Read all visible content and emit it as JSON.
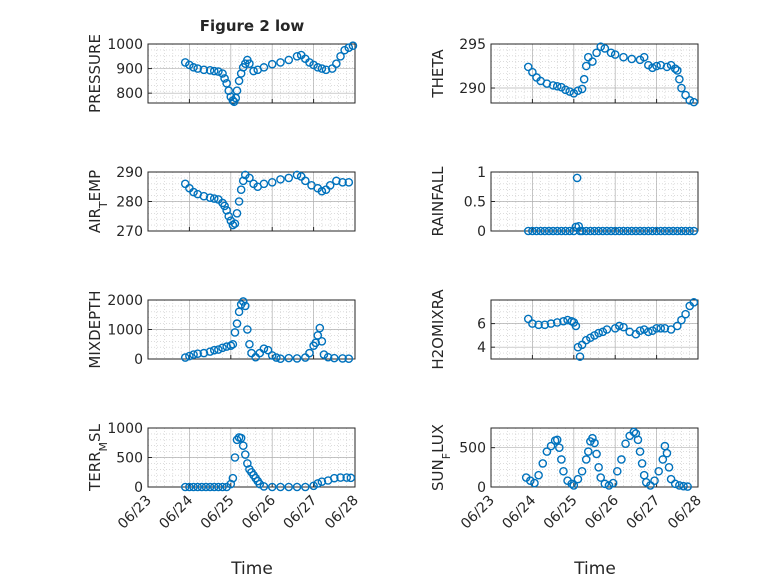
{
  "title": "Figure 2 low",
  "xlabel": "Time",
  "x_ticks": [
    "06/23",
    "06/24",
    "06/25",
    "06/26",
    "06/27",
    "06/28"
  ],
  "marker_color": "#0072BD",
  "chart_data": [
    {
      "type": "scatter",
      "ylabel": "PRESSURE",
      "xlim": [
        0,
        5
      ],
      "ylim": [
        760,
        1000
      ],
      "yticks": [
        800,
        900,
        1000
      ],
      "points": [
        [
          0.9,
          925
        ],
        [
          1.0,
          915
        ],
        [
          1.1,
          905
        ],
        [
          1.2,
          900
        ],
        [
          1.35,
          895
        ],
        [
          1.5,
          893
        ],
        [
          1.6,
          890
        ],
        [
          1.7,
          888
        ],
        [
          1.8,
          880
        ],
        [
          1.85,
          860
        ],
        [
          1.9,
          840
        ],
        [
          1.95,
          810
        ],
        [
          2.0,
          785
        ],
        [
          2.05,
          770
        ],
        [
          2.08,
          765
        ],
        [
          2.12,
          780
        ],
        [
          2.15,
          810
        ],
        [
          2.2,
          850
        ],
        [
          2.25,
          880
        ],
        [
          2.3,
          905
        ],
        [
          2.35,
          920
        ],
        [
          2.4,
          935
        ],
        [
          2.45,
          920
        ],
        [
          2.55,
          890
        ],
        [
          2.65,
          895
        ],
        [
          2.8,
          905
        ],
        [
          3.0,
          918
        ],
        [
          3.2,
          925
        ],
        [
          3.4,
          935
        ],
        [
          3.6,
          950
        ],
        [
          3.7,
          955
        ],
        [
          3.8,
          940
        ],
        [
          3.9,
          925
        ],
        [
          4.0,
          915
        ],
        [
          4.1,
          905
        ],
        [
          4.2,
          900
        ],
        [
          4.3,
          895
        ],
        [
          4.45,
          900
        ],
        [
          4.55,
          920
        ],
        [
          4.65,
          950
        ],
        [
          4.75,
          975
        ],
        [
          4.85,
          985
        ],
        [
          4.95,
          993
        ]
      ]
    },
    {
      "type": "scatter",
      "ylabel": "THETA",
      "xlim": [
        0,
        5
      ],
      "ylim": [
        288.3,
        295
      ],
      "yticks": [
        290,
        295
      ],
      "points": [
        [
          0.9,
          292.4
        ],
        [
          1.0,
          291.8
        ],
        [
          1.1,
          291.2
        ],
        [
          1.2,
          290.8
        ],
        [
          1.35,
          290.5
        ],
        [
          1.5,
          290.3
        ],
        [
          1.6,
          290.2
        ],
        [
          1.7,
          290.1
        ],
        [
          1.8,
          289.8
        ],
        [
          1.9,
          289.6
        ],
        [
          2.0,
          289.4
        ],
        [
          2.1,
          289.7
        ],
        [
          2.2,
          289.9
        ],
        [
          2.25,
          291.0
        ],
        [
          2.3,
          292.5
        ],
        [
          2.35,
          293.5
        ],
        [
          2.45,
          293.0
        ],
        [
          2.55,
          294.0
        ],
        [
          2.65,
          294.7
        ],
        [
          2.75,
          294.5
        ],
        [
          2.9,
          294.0
        ],
        [
          3.0,
          293.8
        ],
        [
          3.2,
          293.5
        ],
        [
          3.4,
          293.3
        ],
        [
          3.6,
          293.2
        ],
        [
          3.7,
          293.5
        ],
        [
          3.8,
          292.6
        ],
        [
          3.9,
          292.3
        ],
        [
          4.0,
          292.5
        ],
        [
          4.1,
          292.6
        ],
        [
          4.25,
          292.4
        ],
        [
          4.35,
          292.6
        ],
        [
          4.45,
          292.2
        ],
        [
          4.5,
          292.0
        ],
        [
          4.55,
          291.0
        ],
        [
          4.6,
          290.0
        ],
        [
          4.7,
          289.2
        ],
        [
          4.8,
          288.6
        ],
        [
          4.9,
          288.4
        ]
      ]
    },
    {
      "type": "scatter",
      "ylabel": "AIR_TEMP",
      "xlim": [
        0,
        5
      ],
      "ylim": [
        270,
        290
      ],
      "yticks": [
        270,
        280,
        290
      ],
      "points": [
        [
          0.9,
          286
        ],
        [
          1.0,
          284.5
        ],
        [
          1.1,
          283.2
        ],
        [
          1.2,
          282.5
        ],
        [
          1.35,
          281.8
        ],
        [
          1.5,
          281.3
        ],
        [
          1.6,
          281.0
        ],
        [
          1.7,
          280.7
        ],
        [
          1.8,
          279.5
        ],
        [
          1.85,
          278.5
        ],
        [
          1.9,
          277.0
        ],
        [
          1.95,
          275.0
        ],
        [
          2.0,
          273.5
        ],
        [
          2.05,
          272.0
        ],
        [
          2.1,
          272.5
        ],
        [
          2.15,
          276.0
        ],
        [
          2.2,
          280.0
        ],
        [
          2.25,
          284.0
        ],
        [
          2.3,
          287.0
        ],
        [
          2.35,
          289.0
        ],
        [
          2.45,
          288.0
        ],
        [
          2.55,
          286.0
        ],
        [
          2.65,
          285.0
        ],
        [
          2.8,
          286.0
        ],
        [
          3.0,
          286.5
        ],
        [
          3.2,
          287.5
        ],
        [
          3.4,
          288.0
        ],
        [
          3.6,
          289.0
        ],
        [
          3.7,
          288.5
        ],
        [
          3.8,
          287.0
        ],
        [
          3.95,
          285.5
        ],
        [
          4.1,
          284.5
        ],
        [
          4.2,
          283.5
        ],
        [
          4.3,
          284.0
        ],
        [
          4.4,
          285.5
        ],
        [
          4.55,
          287.0
        ],
        [
          4.7,
          286.5
        ],
        [
          4.85,
          286.5
        ]
      ]
    },
    {
      "type": "scatter",
      "ylabel": "RAINFALL",
      "xlim": [
        0,
        5
      ],
      "ylim": [
        0,
        1
      ],
      "yticks": [
        0,
        0.5,
        1
      ],
      "points": [
        [
          0.9,
          0
        ],
        [
          1.0,
          0
        ],
        [
          1.1,
          0
        ],
        [
          1.2,
          0
        ],
        [
          1.3,
          0
        ],
        [
          1.4,
          0
        ],
        [
          1.5,
          0
        ],
        [
          1.6,
          0
        ],
        [
          1.7,
          0
        ],
        [
          1.8,
          0
        ],
        [
          1.9,
          0
        ],
        [
          2.0,
          0
        ],
        [
          2.05,
          0.07
        ],
        [
          2.08,
          0.9
        ],
        [
          2.12,
          0.08
        ],
        [
          2.15,
          0
        ],
        [
          2.2,
          0
        ],
        [
          2.3,
          0
        ],
        [
          2.4,
          0
        ],
        [
          2.5,
          0
        ],
        [
          2.6,
          0
        ],
        [
          2.7,
          0
        ],
        [
          2.8,
          0
        ],
        [
          2.9,
          0
        ],
        [
          3.0,
          0
        ],
        [
          3.1,
          0
        ],
        [
          3.2,
          0
        ],
        [
          3.3,
          0
        ],
        [
          3.4,
          0
        ],
        [
          3.5,
          0
        ],
        [
          3.6,
          0
        ],
        [
          3.7,
          0
        ],
        [
          3.8,
          0
        ],
        [
          3.9,
          0
        ],
        [
          4.0,
          0
        ],
        [
          4.1,
          0
        ],
        [
          4.2,
          0
        ],
        [
          4.3,
          0
        ],
        [
          4.4,
          0
        ],
        [
          4.5,
          0
        ],
        [
          4.6,
          0
        ],
        [
          4.7,
          0
        ],
        [
          4.8,
          0
        ],
        [
          4.9,
          0
        ]
      ]
    },
    {
      "type": "scatter",
      "ylabel": "MIXDEPTH",
      "xlim": [
        0,
        5
      ],
      "ylim": [
        0,
        2000
      ],
      "yticks": [
        0,
        1000,
        2000
      ],
      "points": [
        [
          0.9,
          50
        ],
        [
          1.0,
          100
        ],
        [
          1.1,
          150
        ],
        [
          1.2,
          180
        ],
        [
          1.35,
          200
        ],
        [
          1.5,
          250
        ],
        [
          1.6,
          300
        ],
        [
          1.7,
          320
        ],
        [
          1.8,
          380
        ],
        [
          1.9,
          420
        ],
        [
          2.0,
          450
        ],
        [
          2.05,
          500
        ],
        [
          2.1,
          900
        ],
        [
          2.15,
          1200
        ],
        [
          2.2,
          1600
        ],
        [
          2.25,
          1850
        ],
        [
          2.3,
          1950
        ],
        [
          2.35,
          1800
        ],
        [
          2.4,
          1000
        ],
        [
          2.45,
          500
        ],
        [
          2.5,
          200
        ],
        [
          2.6,
          60
        ],
        [
          2.7,
          200
        ],
        [
          2.8,
          350
        ],
        [
          2.9,
          300
        ],
        [
          3.0,
          120
        ],
        [
          3.1,
          50
        ],
        [
          3.2,
          10
        ],
        [
          3.4,
          30
        ],
        [
          3.6,
          20
        ],
        [
          3.8,
          50
        ],
        [
          3.9,
          200
        ],
        [
          4.0,
          450
        ],
        [
          4.05,
          550
        ],
        [
          4.1,
          800
        ],
        [
          4.15,
          1050
        ],
        [
          4.2,
          600
        ],
        [
          4.25,
          150
        ],
        [
          4.35,
          60
        ],
        [
          4.5,
          30
        ],
        [
          4.7,
          20
        ],
        [
          4.85,
          10
        ]
      ]
    },
    {
      "type": "scatter",
      "ylabel": "H2OMIXRA",
      "xlim": [
        0,
        5
      ],
      "ylim": [
        3,
        8
      ],
      "yticks": [
        4,
        6
      ],
      "points": [
        [
          0.9,
          6.4
        ],
        [
          1.0,
          6.0
        ],
        [
          1.15,
          5.9
        ],
        [
          1.3,
          5.9
        ],
        [
          1.45,
          6.0
        ],
        [
          1.6,
          6.1
        ],
        [
          1.75,
          6.2
        ],
        [
          1.85,
          6.3
        ],
        [
          1.95,
          6.2
        ],
        [
          2.0,
          6.1
        ],
        [
          2.05,
          5.8
        ],
        [
          2.1,
          4.0
        ],
        [
          2.15,
          3.2
        ],
        [
          2.2,
          4.2
        ],
        [
          2.3,
          4.6
        ],
        [
          2.4,
          4.8
        ],
        [
          2.5,
          5.0
        ],
        [
          2.6,
          5.2
        ],
        [
          2.7,
          5.3
        ],
        [
          2.8,
          5.5
        ],
        [
          3.0,
          5.6
        ],
        [
          3.1,
          5.8
        ],
        [
          3.2,
          5.7
        ],
        [
          3.35,
          5.3
        ],
        [
          3.5,
          5.1
        ],
        [
          3.6,
          5.4
        ],
        [
          3.7,
          5.5
        ],
        [
          3.8,
          5.3
        ],
        [
          3.9,
          5.4
        ],
        [
          4.0,
          5.6
        ],
        [
          4.1,
          5.6
        ],
        [
          4.2,
          5.6
        ],
        [
          4.35,
          5.5
        ],
        [
          4.5,
          5.8
        ],
        [
          4.6,
          6.3
        ],
        [
          4.7,
          6.8
        ],
        [
          4.8,
          7.5
        ],
        [
          4.9,
          7.8
        ]
      ]
    },
    {
      "type": "scatter",
      "ylabel": "TERR_MSL",
      "xlim": [
        0,
        5
      ],
      "ylim": [
        0,
        1000
      ],
      "yticks": [
        0,
        500,
        1000
      ],
      "points": [
        [
          0.9,
          0
        ],
        [
          1.0,
          0
        ],
        [
          1.1,
          0
        ],
        [
          1.2,
          0
        ],
        [
          1.3,
          0
        ],
        [
          1.4,
          0
        ],
        [
          1.5,
          0
        ],
        [
          1.6,
          0
        ],
        [
          1.7,
          0
        ],
        [
          1.8,
          0
        ],
        [
          1.9,
          0
        ],
        [
          2.0,
          50
        ],
        [
          2.05,
          150
        ],
        [
          2.1,
          500
        ],
        [
          2.15,
          800
        ],
        [
          2.2,
          840
        ],
        [
          2.25,
          830
        ],
        [
          2.3,
          700
        ],
        [
          2.35,
          550
        ],
        [
          2.4,
          400
        ],
        [
          2.45,
          300
        ],
        [
          2.5,
          250
        ],
        [
          2.55,
          200
        ],
        [
          2.6,
          150
        ],
        [
          2.65,
          100
        ],
        [
          2.7,
          50
        ],
        [
          2.8,
          10
        ],
        [
          3.0,
          0
        ],
        [
          3.2,
          0
        ],
        [
          3.4,
          0
        ],
        [
          3.6,
          0
        ],
        [
          3.8,
          0
        ],
        [
          4.0,
          20
        ],
        [
          4.1,
          60
        ],
        [
          4.2,
          90
        ],
        [
          4.35,
          110
        ],
        [
          4.5,
          150
        ],
        [
          4.65,
          160
        ],
        [
          4.8,
          160
        ],
        [
          4.9,
          155
        ]
      ]
    },
    {
      "type": "scatter",
      "ylabel": "SUN_FLUX",
      "xlim": [
        0,
        5
      ],
      "ylim": [
        0,
        750
      ],
      "yticks": [
        0,
        500
      ],
      "points": [
        [
          0.85,
          120
        ],
        [
          0.95,
          80
        ],
        [
          1.05,
          50
        ],
        [
          1.15,
          150
        ],
        [
          1.25,
          300
        ],
        [
          1.35,
          450
        ],
        [
          1.45,
          520
        ],
        [
          1.55,
          590
        ],
        [
          1.6,
          600
        ],
        [
          1.65,
          500
        ],
        [
          1.7,
          350
        ],
        [
          1.75,
          200
        ],
        [
          1.85,
          80
        ],
        [
          1.95,
          40
        ],
        [
          2.0,
          20
        ],
        [
          2.1,
          100
        ],
        [
          2.2,
          200
        ],
        [
          2.3,
          350
        ],
        [
          2.35,
          450
        ],
        [
          2.4,
          580
        ],
        [
          2.45,
          620
        ],
        [
          2.5,
          560
        ],
        [
          2.55,
          420
        ],
        [
          2.6,
          250
        ],
        [
          2.65,
          120
        ],
        [
          2.75,
          40
        ],
        [
          2.85,
          20
        ],
        [
          2.95,
          50
        ],
        [
          3.05,
          200
        ],
        [
          3.15,
          350
        ],
        [
          3.25,
          550
        ],
        [
          3.35,
          650
        ],
        [
          3.45,
          700
        ],
        [
          3.5,
          680
        ],
        [
          3.55,
          600
        ],
        [
          3.6,
          450
        ],
        [
          3.65,
          300
        ],
        [
          3.7,
          150
        ],
        [
          3.75,
          60
        ],
        [
          3.85,
          20
        ],
        [
          3.95,
          80
        ],
        [
          4.05,
          200
        ],
        [
          4.15,
          350
        ],
        [
          4.2,
          520
        ],
        [
          4.25,
          430
        ],
        [
          4.3,
          250
        ],
        [
          4.35,
          100
        ],
        [
          4.45,
          40
        ],
        [
          4.55,
          20
        ],
        [
          4.65,
          10
        ],
        [
          4.75,
          5
        ]
      ]
    }
  ]
}
